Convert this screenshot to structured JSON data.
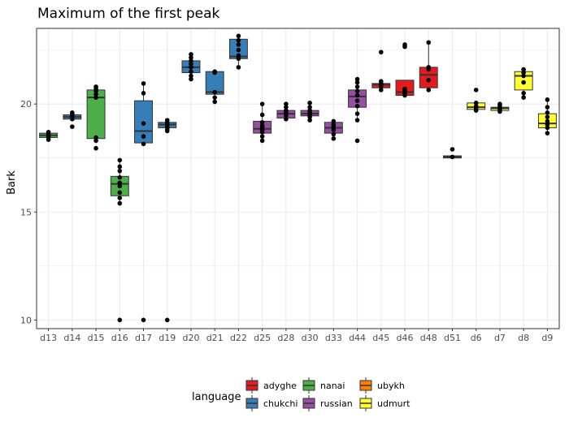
{
  "chart_data": {
    "type": "box",
    "title": "Maximum of the first peak",
    "xlabel": "",
    "ylabel": "Bark",
    "ylim": [
      9.6,
      23.5
    ],
    "yticks": [
      10,
      15,
      20
    ],
    "grid": true,
    "legend": {
      "title": "language",
      "placement": "bottom",
      "entries": [
        {
          "name": "adyghe",
          "color": "#e41a1c"
        },
        {
          "name": "chukchi",
          "color": "#377eb8"
        },
        {
          "name": "nanai",
          "color": "#4daf4a"
        },
        {
          "name": "russian",
          "color": "#984ea3"
        },
        {
          "name": "ubykh",
          "color": "#ff7f00"
        },
        {
          "name": "udmurt",
          "color": "#ffff33"
        }
      ]
    },
    "categories": [
      "d13",
      "d14",
      "d15",
      "d16",
      "d17",
      "d19",
      "d20",
      "d21",
      "d22",
      "d25",
      "d28",
      "d30",
      "d33",
      "d44",
      "d45",
      "d46",
      "d48",
      "d51",
      "d6",
      "d7",
      "d8",
      "d9"
    ],
    "boxes": [
      {
        "cat": "d13",
        "language": "nanai",
        "q1": 18.45,
        "median": 18.55,
        "q3": 18.65,
        "whisker_low": 18.35,
        "whisker_high": 18.75,
        "points": [
          18.35,
          18.45,
          18.5,
          18.6,
          18.7
        ]
      },
      {
        "cat": "d14",
        "language": "chukchi",
        "q1": 19.3,
        "median": 19.4,
        "q3": 19.5,
        "whisker_low": 19.2,
        "whisker_high": 19.6,
        "points": [
          18.95,
          19.3,
          19.4,
          19.45,
          19.5,
          19.6
        ]
      },
      {
        "cat": "d15",
        "language": "nanai",
        "q1": 18.4,
        "median": 20.3,
        "q3": 20.65,
        "whisker_low": 18.35,
        "whisker_high": 20.85,
        "points": [
          17.95,
          18.3,
          18.45,
          20.3,
          20.45,
          20.6,
          20.7,
          20.8
        ]
      },
      {
        "cat": "d16",
        "language": "nanai",
        "q1": 15.75,
        "median": 16.3,
        "q3": 16.65,
        "whisker_low": 15.4,
        "whisker_high": 17.4,
        "points": [
          10.0,
          15.4,
          15.65,
          15.9,
          16.2,
          16.35,
          16.6,
          16.9,
          17.1,
          17.4
        ]
      },
      {
        "cat": "d17",
        "language": "chukchi",
        "q1": 18.2,
        "median": 18.75,
        "q3": 20.15,
        "whisker_low": 18.15,
        "whisker_high": 20.95,
        "points": [
          10.0,
          18.15,
          18.5,
          19.1,
          20.5,
          20.95
        ]
      },
      {
        "cat": "d19",
        "language": "chukchi",
        "q1": 18.9,
        "median": 19.05,
        "q3": 19.15,
        "whisker_low": 18.75,
        "whisker_high": 19.3,
        "points": [
          10.0,
          18.75,
          18.85,
          18.95,
          19.05,
          19.15,
          19.25
        ]
      },
      {
        "cat": "d20",
        "language": "chukchi",
        "q1": 21.45,
        "median": 21.7,
        "q3": 22.0,
        "whisker_low": 21.1,
        "whisker_high": 22.3,
        "points": [
          21.15,
          21.3,
          21.5,
          21.7,
          21.85,
          22.0,
          22.15,
          22.3
        ]
      },
      {
        "cat": "d21",
        "language": "chukchi",
        "q1": 20.45,
        "median": 20.55,
        "q3": 21.5,
        "whisker_low": 20.1,
        "whisker_high": 21.5,
        "points": [
          20.1,
          20.3,
          20.55,
          21.45,
          21.5
        ]
      },
      {
        "cat": "d22",
        "language": "chukchi",
        "q1": 22.1,
        "median": 22.2,
        "q3": 23.0,
        "whisker_low": 21.65,
        "whisker_high": 23.15,
        "points": [
          21.7,
          22.1,
          22.25,
          22.5,
          22.75,
          22.95,
          23.15
        ]
      },
      {
        "cat": "d25",
        "language": "russian",
        "q1": 18.65,
        "median": 18.85,
        "q3": 19.2,
        "whisker_low": 18.3,
        "whisker_high": 20.0,
        "points": [
          18.3,
          18.5,
          18.7,
          18.8,
          18.9,
          19.0,
          19.15,
          19.5,
          20.0
        ]
      },
      {
        "cat": "d28",
        "language": "russian",
        "q1": 19.35,
        "median": 19.55,
        "q3": 19.7,
        "whisker_low": 19.2,
        "whisker_high": 20.0,
        "points": [
          19.3,
          19.45,
          19.55,
          19.65,
          19.7,
          19.85,
          20.0
        ]
      },
      {
        "cat": "d30",
        "language": "russian",
        "q1": 19.45,
        "median": 19.55,
        "q3": 19.7,
        "whisker_low": 19.2,
        "whisker_high": 20.05,
        "points": [
          19.25,
          19.4,
          19.5,
          19.6,
          19.7,
          19.85,
          20.05
        ]
      },
      {
        "cat": "d33",
        "language": "russian",
        "q1": 18.65,
        "median": 18.9,
        "q3": 19.15,
        "whisker_low": 18.4,
        "whisker_high": 19.2,
        "points": [
          18.4,
          18.6,
          18.8,
          18.95,
          19.05,
          19.2
        ]
      },
      {
        "cat": "d44",
        "language": "russian",
        "q1": 19.85,
        "median": 20.35,
        "q3": 20.65,
        "whisker_low": 19.25,
        "whisker_high": 21.15,
        "points": [
          18.3,
          19.25,
          19.55,
          19.9,
          20.15,
          20.4,
          20.6,
          20.8,
          21.0,
          21.15
        ]
      },
      {
        "cat": "d45",
        "language": "adyghe",
        "q1": 20.75,
        "median": 20.9,
        "q3": 20.95,
        "whisker_low": 20.6,
        "whisker_high": 21.05,
        "points": [
          20.65,
          20.8,
          20.9,
          20.95,
          21.05,
          22.4
        ]
      },
      {
        "cat": "d46",
        "language": "adyghe",
        "q1": 20.4,
        "median": 20.55,
        "q3": 21.1,
        "whisker_low": 20.4,
        "whisker_high": 21.1,
        "points": [
          20.4,
          20.5,
          20.6,
          20.7,
          22.65,
          22.75
        ]
      },
      {
        "cat": "d48",
        "language": "adyghe",
        "q1": 20.75,
        "median": 21.35,
        "q3": 21.7,
        "whisker_low": 20.65,
        "whisker_high": 22.85,
        "points": [
          20.65,
          21.1,
          21.6,
          21.7,
          22.85
        ]
      },
      {
        "cat": "d51",
        "language": "ubykh",
        "q1": 17.5,
        "median": 17.55,
        "q3": 17.6,
        "whisker_low": 17.5,
        "whisker_high": 17.6,
        "points": [
          17.55,
          17.9
        ]
      },
      {
        "cat": "d6",
        "language": "udmurt",
        "q1": 19.75,
        "median": 19.85,
        "q3": 20.05,
        "whisker_low": 19.7,
        "whisker_high": 20.1,
        "points": [
          19.7,
          19.8,
          19.9,
          20.05,
          20.65
        ]
      },
      {
        "cat": "d7",
        "language": "udmurt",
        "q1": 19.7,
        "median": 19.8,
        "q3": 19.85,
        "whisker_low": 19.65,
        "whisker_high": 19.95,
        "points": [
          19.65,
          19.75,
          19.85,
          19.95,
          20.0
        ]
      },
      {
        "cat": "d8",
        "language": "udmurt",
        "q1": 20.65,
        "median": 21.3,
        "q3": 21.5,
        "whisker_low": 20.3,
        "whisker_high": 21.6,
        "points": [
          20.3,
          20.5,
          21.0,
          21.3,
          21.45,
          21.6
        ]
      },
      {
        "cat": "d9",
        "language": "udmurt",
        "q1": 18.9,
        "median": 19.1,
        "q3": 19.55,
        "whisker_low": 18.6,
        "whisker_high": 20.2,
        "points": [
          18.65,
          18.9,
          19.05,
          19.2,
          19.4,
          19.6,
          19.85,
          20.2
        ]
      }
    ]
  }
}
